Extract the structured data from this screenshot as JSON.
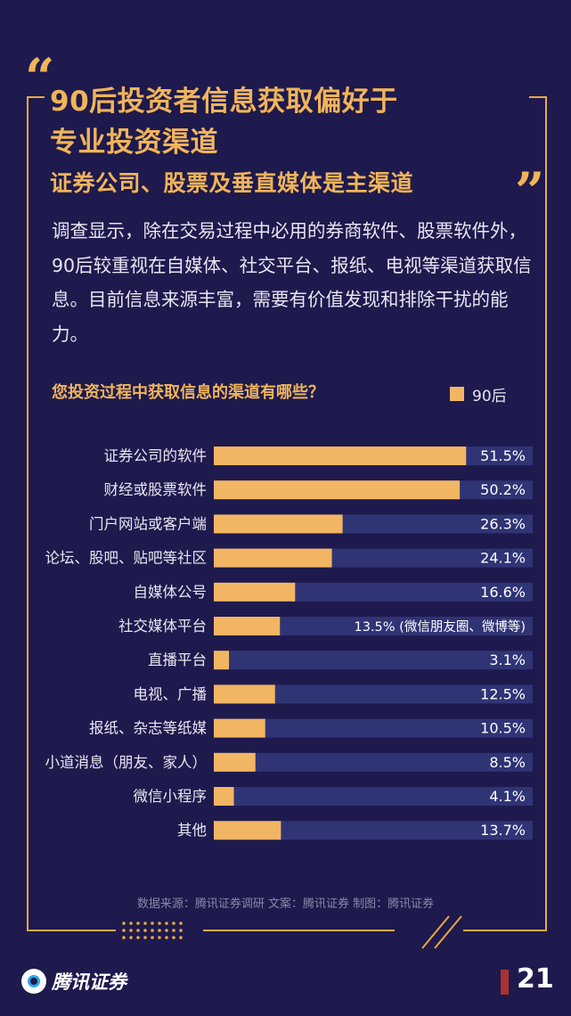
{
  "header": {
    "title_line1": "90后投资者信息获取偏好于",
    "title_line2": "专业投资渠道",
    "subtitle": "证券公司、股票及垂直媒体是主渠道",
    "quote_open": "“",
    "quote_close": "”"
  },
  "intro_text": "调查显示，除在交易过程中必用的券商软件、股票软件外，90后较重视在自媒体、社交平台、报纸、电视等渠道获取信息。目前信息来源丰富，需要有价值发现和排除干扰的能力。",
  "colors": {
    "background": "#1e1a4d",
    "bar": "#f2b563",
    "track": "#2f3475",
    "accent": "#f0b45a"
  },
  "chart_data": {
    "type": "bar",
    "orientation": "horizontal",
    "title": "您投资过程中获取信息的渠道有哪些？",
    "legend": [
      "90后"
    ],
    "legend_position": "top-right",
    "series": [
      {
        "name": "90后",
        "values": [
          51.5,
          50.2,
          26.3,
          24.1,
          16.6,
          13.5,
          3.1,
          12.5,
          10.5,
          8.5,
          4.1,
          13.7
        ]
      }
    ],
    "categories": [
      "证券公司的软件",
      "财经或股票软件",
      "门户网站或客户端",
      "论坛、股吧、贴吧等社区",
      "自媒体公号",
      "社交媒体平台",
      "直播平台",
      "电视、广播",
      "报纸、杂志等纸媒",
      "小道消息（朋友、家人）",
      "微信小程序",
      "其他"
    ],
    "value_labels": [
      "51.5%",
      "50.2%",
      "26.3%",
      "24.1%",
      "16.6%",
      "13.5% (微信朋友圈、微博等)",
      "3.1%",
      "12.5%",
      "10.5%",
      "8.5%",
      "4.1%",
      "13.7%"
    ],
    "xlim": [
      0,
      55
    ],
    "grid": false
  },
  "footer": {
    "source_note": "数据来源：腾讯证券调研   文案：腾讯证券   制图：腾讯证券",
    "brand_name": "腾讯证券",
    "page_number": "21"
  }
}
